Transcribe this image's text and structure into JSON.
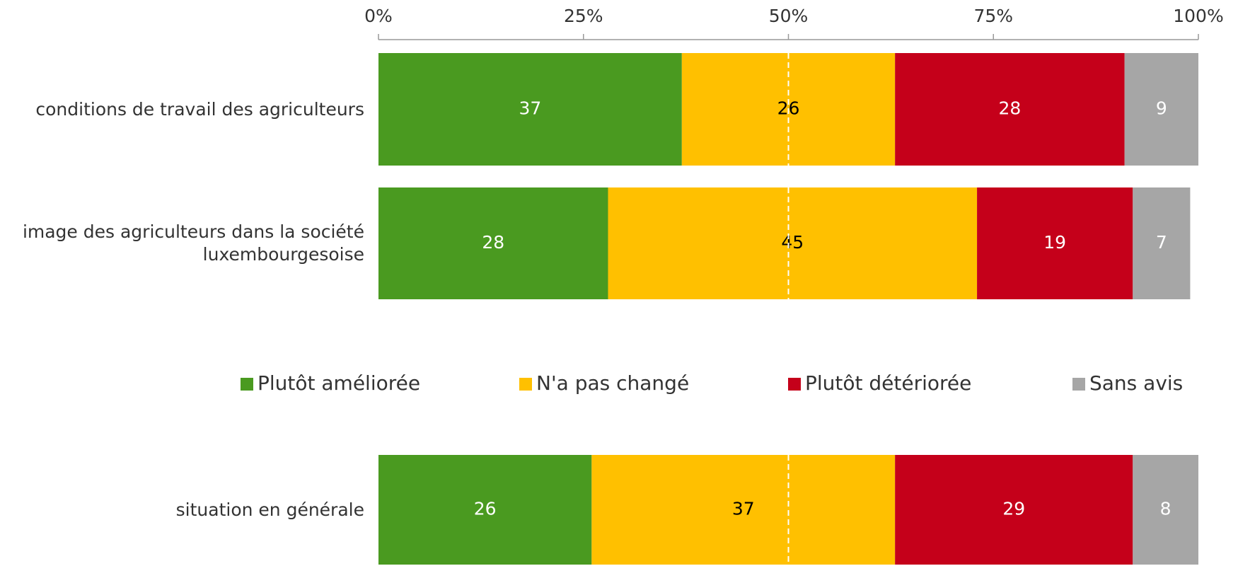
{
  "chart_data": {
    "type": "stacked_bar_horizontal",
    "categories": [
      "conditions de travail des agriculteurs",
      "image des agriculteurs dans la société luxembourgesoise",
      "situation en générale"
    ],
    "series": [
      {
        "name": "Plutôt améliorée",
        "color": "#4a9a20",
        "label_color": "#ffffff",
        "values": [
          37,
          28,
          26
        ]
      },
      {
        "name": "N'a pas changé",
        "color": "#ffc000",
        "label_color": "#000000",
        "values": [
          26,
          45,
          37
        ]
      },
      {
        "name": "Plutôt détériorée",
        "color": "#c5001a",
        "label_color": "#ffffff",
        "values": [
          28,
          19,
          29
        ]
      },
      {
        "name": "Sans avis",
        "color": "#a6a6a6",
        "label_color": "#ffffff",
        "values": [
          9,
          7,
          8
        ]
      }
    ],
    "xlim": [
      0,
      100
    ],
    "xticks": [
      {
        "value": 0,
        "label": "0%"
      },
      {
        "value": 25,
        "label": "25%"
      },
      {
        "value": 50,
        "label": "50%"
      },
      {
        "value": 75,
        "label": "75%"
      },
      {
        "value": 100,
        "label": "100%"
      }
    ],
    "reference_line": 50
  }
}
